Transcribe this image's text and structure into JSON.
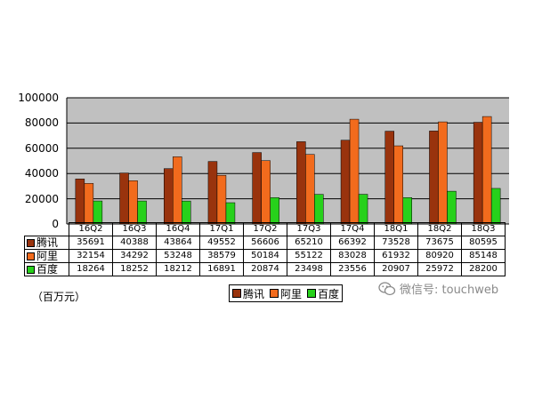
{
  "chart_data": {
    "type": "bar",
    "categories": [
      "16Q2",
      "16Q3",
      "16Q4",
      "17Q1",
      "17Q2",
      "17Q3",
      "17Q4",
      "18Q1",
      "18Q2",
      "18Q3"
    ],
    "series": [
      {
        "name": "腾讯",
        "color": "#99330D",
        "values": [
          35691,
          40388,
          43864,
          49552,
          56606,
          65210,
          66392,
          73528,
          73675,
          80595
        ]
      },
      {
        "name": "阿里",
        "color": "#F26B1D",
        "values": [
          32154,
          34292,
          53248,
          38579,
          50184,
          55122,
          83028,
          61932,
          80920,
          85148
        ]
      },
      {
        "name": "百度",
        "color": "#27D11B",
        "values": [
          18264,
          18252,
          18212,
          16891,
          20874,
          23498,
          23556,
          20907,
          25972,
          28200
        ]
      }
    ],
    "ylim": [
      0,
      100000
    ],
    "yticks": [
      "0",
      "20000",
      "40000",
      "60000",
      "80000",
      "100000"
    ],
    "grid": true,
    "unit_label": "（百万元）",
    "legend_position": "bottom",
    "colors": {
      "plot_bg": "#C0C0C0",
      "grid": "#000000"
    }
  },
  "watermark": {
    "text": "微信号: touchweb",
    "icon": "wechat-icon"
  }
}
